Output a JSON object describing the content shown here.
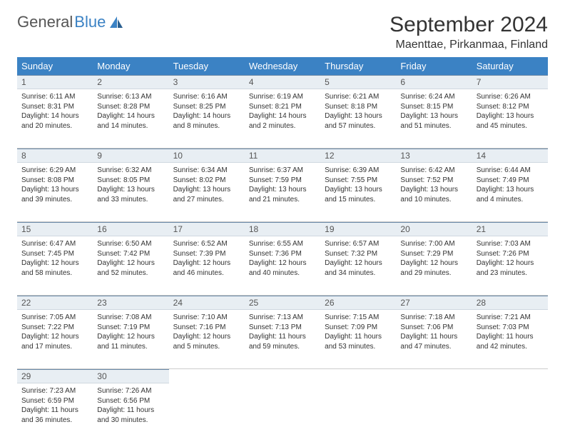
{
  "logo": {
    "text1": "General",
    "text2": "Blue"
  },
  "title": "September 2024",
  "location": "Maenttae, Pirkanmaa, Finland",
  "day_names": [
    "Sunday",
    "Monday",
    "Tuesday",
    "Wednesday",
    "Thursday",
    "Friday",
    "Saturday"
  ],
  "colors": {
    "header_bg": "#3b82c4",
    "numrow_bg": "#e8eef3",
    "numrow_border": "#6b8aa8",
    "text": "#333333"
  },
  "weeks": [
    [
      {
        "n": "1",
        "sr": "Sunrise: 6:11 AM",
        "ss": "Sunset: 8:31 PM",
        "dl": "Daylight: 14 hours and 20 minutes."
      },
      {
        "n": "2",
        "sr": "Sunrise: 6:13 AM",
        "ss": "Sunset: 8:28 PM",
        "dl": "Daylight: 14 hours and 14 minutes."
      },
      {
        "n": "3",
        "sr": "Sunrise: 6:16 AM",
        "ss": "Sunset: 8:25 PM",
        "dl": "Daylight: 14 hours and 8 minutes."
      },
      {
        "n": "4",
        "sr": "Sunrise: 6:19 AM",
        "ss": "Sunset: 8:21 PM",
        "dl": "Daylight: 14 hours and 2 minutes."
      },
      {
        "n": "5",
        "sr": "Sunrise: 6:21 AM",
        "ss": "Sunset: 8:18 PM",
        "dl": "Daylight: 13 hours and 57 minutes."
      },
      {
        "n": "6",
        "sr": "Sunrise: 6:24 AM",
        "ss": "Sunset: 8:15 PM",
        "dl": "Daylight: 13 hours and 51 minutes."
      },
      {
        "n": "7",
        "sr": "Sunrise: 6:26 AM",
        "ss": "Sunset: 8:12 PM",
        "dl": "Daylight: 13 hours and 45 minutes."
      }
    ],
    [
      {
        "n": "8",
        "sr": "Sunrise: 6:29 AM",
        "ss": "Sunset: 8:08 PM",
        "dl": "Daylight: 13 hours and 39 minutes."
      },
      {
        "n": "9",
        "sr": "Sunrise: 6:32 AM",
        "ss": "Sunset: 8:05 PM",
        "dl": "Daylight: 13 hours and 33 minutes."
      },
      {
        "n": "10",
        "sr": "Sunrise: 6:34 AM",
        "ss": "Sunset: 8:02 PM",
        "dl": "Daylight: 13 hours and 27 minutes."
      },
      {
        "n": "11",
        "sr": "Sunrise: 6:37 AM",
        "ss": "Sunset: 7:59 PM",
        "dl": "Daylight: 13 hours and 21 minutes."
      },
      {
        "n": "12",
        "sr": "Sunrise: 6:39 AM",
        "ss": "Sunset: 7:55 PM",
        "dl": "Daylight: 13 hours and 15 minutes."
      },
      {
        "n": "13",
        "sr": "Sunrise: 6:42 AM",
        "ss": "Sunset: 7:52 PM",
        "dl": "Daylight: 13 hours and 10 minutes."
      },
      {
        "n": "14",
        "sr": "Sunrise: 6:44 AM",
        "ss": "Sunset: 7:49 PM",
        "dl": "Daylight: 13 hours and 4 minutes."
      }
    ],
    [
      {
        "n": "15",
        "sr": "Sunrise: 6:47 AM",
        "ss": "Sunset: 7:45 PM",
        "dl": "Daylight: 12 hours and 58 minutes."
      },
      {
        "n": "16",
        "sr": "Sunrise: 6:50 AM",
        "ss": "Sunset: 7:42 PM",
        "dl": "Daylight: 12 hours and 52 minutes."
      },
      {
        "n": "17",
        "sr": "Sunrise: 6:52 AM",
        "ss": "Sunset: 7:39 PM",
        "dl": "Daylight: 12 hours and 46 minutes."
      },
      {
        "n": "18",
        "sr": "Sunrise: 6:55 AM",
        "ss": "Sunset: 7:36 PM",
        "dl": "Daylight: 12 hours and 40 minutes."
      },
      {
        "n": "19",
        "sr": "Sunrise: 6:57 AM",
        "ss": "Sunset: 7:32 PM",
        "dl": "Daylight: 12 hours and 34 minutes."
      },
      {
        "n": "20",
        "sr": "Sunrise: 7:00 AM",
        "ss": "Sunset: 7:29 PM",
        "dl": "Daylight: 12 hours and 29 minutes."
      },
      {
        "n": "21",
        "sr": "Sunrise: 7:03 AM",
        "ss": "Sunset: 7:26 PM",
        "dl": "Daylight: 12 hours and 23 minutes."
      }
    ],
    [
      {
        "n": "22",
        "sr": "Sunrise: 7:05 AM",
        "ss": "Sunset: 7:22 PM",
        "dl": "Daylight: 12 hours and 17 minutes."
      },
      {
        "n": "23",
        "sr": "Sunrise: 7:08 AM",
        "ss": "Sunset: 7:19 PM",
        "dl": "Daylight: 12 hours and 11 minutes."
      },
      {
        "n": "24",
        "sr": "Sunrise: 7:10 AM",
        "ss": "Sunset: 7:16 PM",
        "dl": "Daylight: 12 hours and 5 minutes."
      },
      {
        "n": "25",
        "sr": "Sunrise: 7:13 AM",
        "ss": "Sunset: 7:13 PM",
        "dl": "Daylight: 11 hours and 59 minutes."
      },
      {
        "n": "26",
        "sr": "Sunrise: 7:15 AM",
        "ss": "Sunset: 7:09 PM",
        "dl": "Daylight: 11 hours and 53 minutes."
      },
      {
        "n": "27",
        "sr": "Sunrise: 7:18 AM",
        "ss": "Sunset: 7:06 PM",
        "dl": "Daylight: 11 hours and 47 minutes."
      },
      {
        "n": "28",
        "sr": "Sunrise: 7:21 AM",
        "ss": "Sunset: 7:03 PM",
        "dl": "Daylight: 11 hours and 42 minutes."
      }
    ],
    [
      {
        "n": "29",
        "sr": "Sunrise: 7:23 AM",
        "ss": "Sunset: 6:59 PM",
        "dl": "Daylight: 11 hours and 36 minutes."
      },
      {
        "n": "30",
        "sr": "Sunrise: 7:26 AM",
        "ss": "Sunset: 6:56 PM",
        "dl": "Daylight: 11 hours and 30 minutes."
      },
      null,
      null,
      null,
      null,
      null
    ]
  ]
}
